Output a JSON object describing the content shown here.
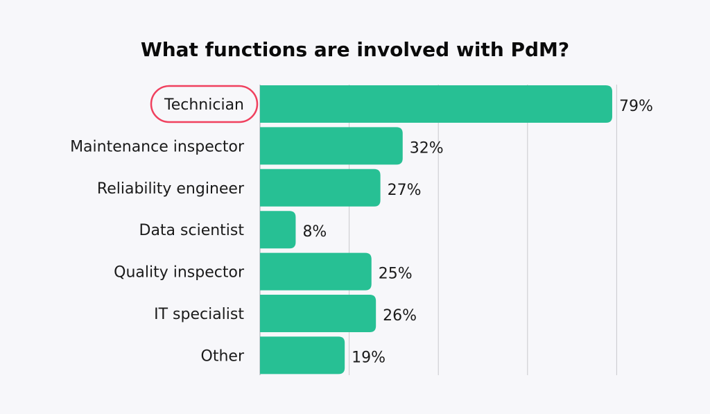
{
  "chart_data": {
    "type": "bar",
    "orientation": "horizontal",
    "title": "What functions are involved with PdM?",
    "categories": [
      "Technician",
      "Maintenance inspector",
      "Reliability engineer",
      "Data scientist",
      "Quality inspector",
      "IT specialist",
      "Other"
    ],
    "values": [
      79,
      32,
      27,
      8,
      25,
      26,
      19
    ],
    "value_labels": [
      "79%",
      "32%",
      "27%",
      "8%",
      "25%",
      "26%",
      "19%"
    ],
    "xlim": [
      0,
      80
    ],
    "grid": true,
    "highlighted_category": "Technician",
    "colors": {
      "bar": "#27c094",
      "highlight": "#f0405e",
      "background": "#f7f7fa"
    }
  }
}
